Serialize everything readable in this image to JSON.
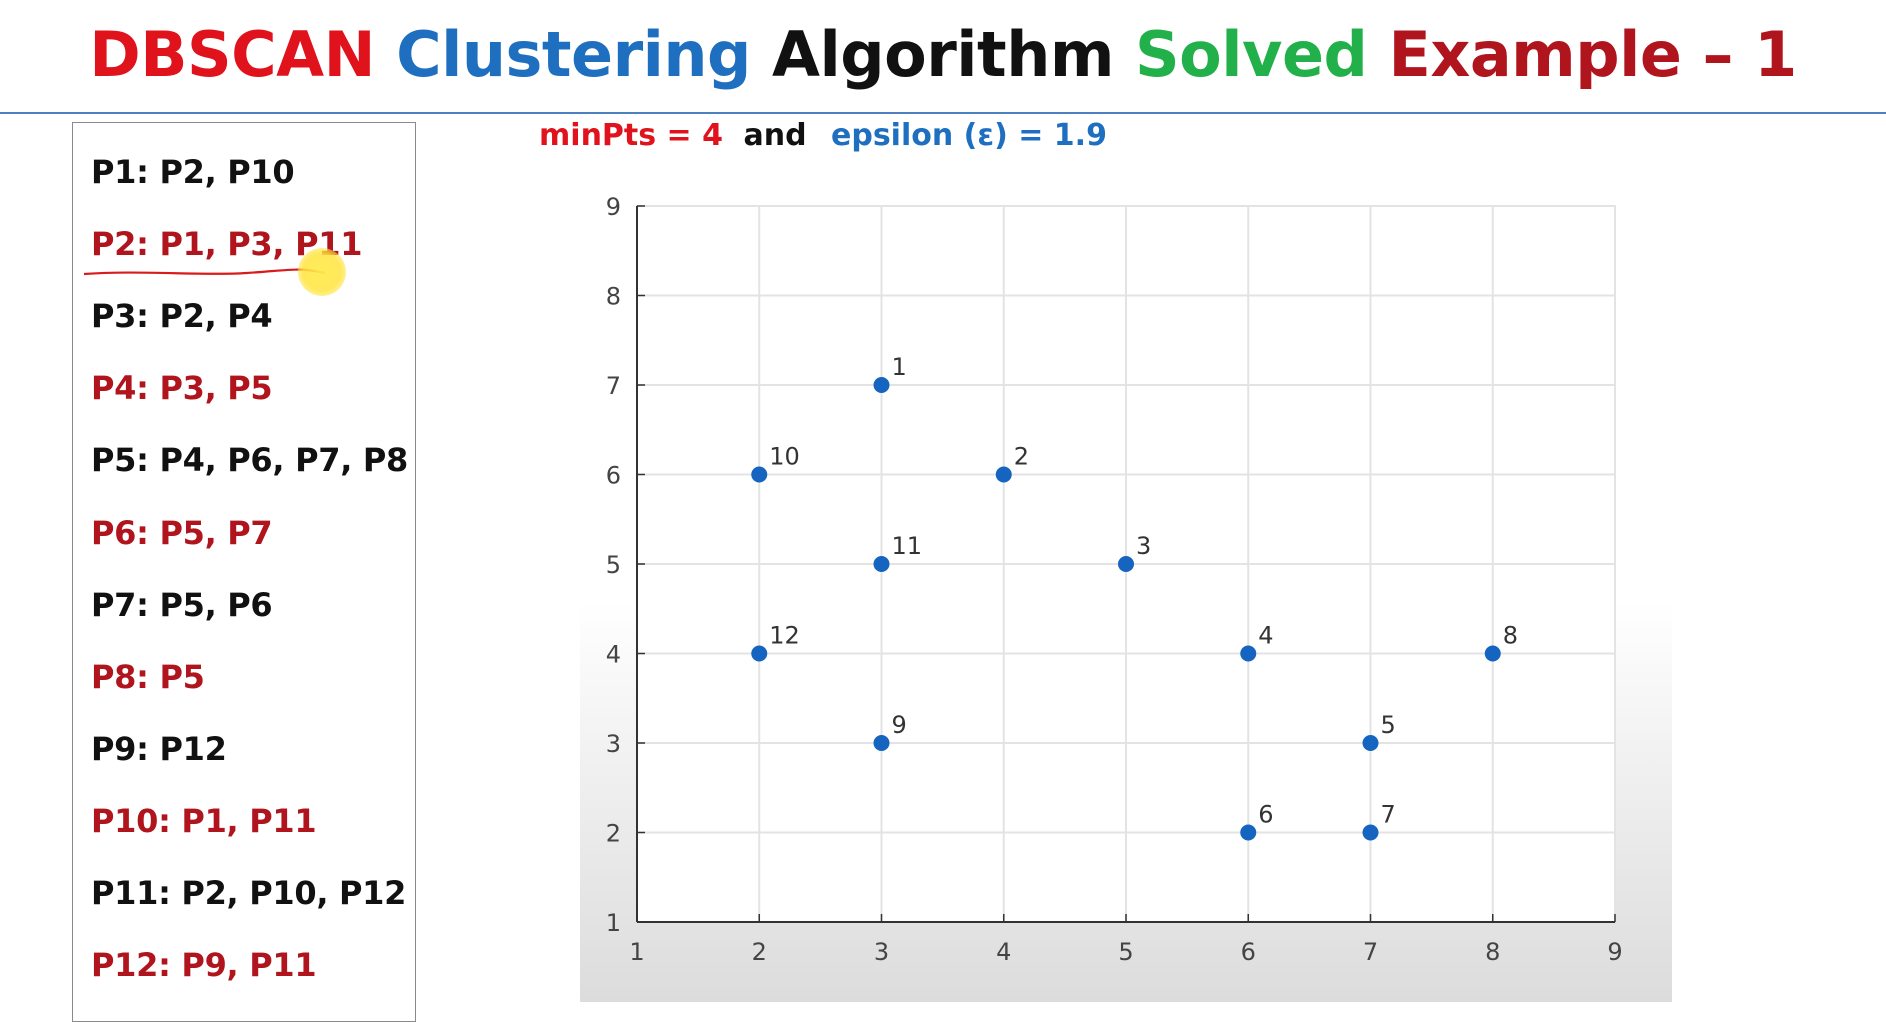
{
  "title": {
    "parts": [
      {
        "text": "DBSCAN ",
        "color": "#e0121c"
      },
      {
        "text": "Clustering ",
        "color": "#1f6fc0"
      },
      {
        "text": "Algorithm ",
        "color": "#111111"
      },
      {
        "text": "Solved ",
        "color": "#22b04a"
      },
      {
        "text": "Example – 1",
        "color": "#b0141c"
      }
    ]
  },
  "params": {
    "minpts": "minPts = 4",
    "and": "and",
    "epsilon": "epsilon (ε)  = 1.9",
    "minpts_color": "#e0121c",
    "and_color": "#111111",
    "epsilon_color": "#1f6fc0"
  },
  "neighbor_list": [
    {
      "text": "P1: P2, P10",
      "color": "#111111"
    },
    {
      "text": "P2: P1, P3, P11",
      "color": "#b0141c"
    },
    {
      "text": "P3: P2, P4",
      "color": "#111111"
    },
    {
      "text": "P4: P3, P5",
      "color": "#b0141c"
    },
    {
      "text": "P5: P4, P6, P7, P8",
      "color": "#111111"
    },
    {
      "text": "P6: P5, P7",
      "color": "#b0141c"
    },
    {
      "text": "P7: P5, P6",
      "color": "#111111"
    },
    {
      "text": "P8: P5",
      "color": "#b0141c"
    },
    {
      "text": "P9: P12",
      "color": "#111111"
    },
    {
      "text": "P10: P1, P11",
      "color": "#b0141c"
    },
    {
      "text": "P11: P2, P10, P12",
      "color": "#111111"
    },
    {
      "text": "P12: P9, P11",
      "color": "#b0141c"
    }
  ],
  "chart_data": {
    "type": "scatter",
    "xlim": [
      1,
      9
    ],
    "ylim": [
      1,
      9
    ],
    "xticks": [
      "1",
      "2",
      "3",
      "4",
      "5",
      "6",
      "7",
      "8",
      "9"
    ],
    "yticks": [
      "1",
      "2",
      "3",
      "4",
      "5",
      "6",
      "7",
      "8",
      "9"
    ],
    "grid": true,
    "point_color": "#1565c0",
    "points": [
      {
        "label": "1",
        "x": 3,
        "y": 7
      },
      {
        "label": "2",
        "x": 4,
        "y": 6
      },
      {
        "label": "3",
        "x": 5,
        "y": 5
      },
      {
        "label": "4",
        "x": 6,
        "y": 4
      },
      {
        "label": "5",
        "x": 7,
        "y": 3
      },
      {
        "label": "6",
        "x": 6,
        "y": 2
      },
      {
        "label": "7",
        "x": 7,
        "y": 2
      },
      {
        "label": "8",
        "x": 8,
        "y": 4
      },
      {
        "label": "9",
        "x": 3,
        "y": 3
      },
      {
        "label": "10",
        "x": 2,
        "y": 6
      },
      {
        "label": "11",
        "x": 3,
        "y": 5
      },
      {
        "label": "12",
        "x": 2,
        "y": 4
      }
    ]
  }
}
